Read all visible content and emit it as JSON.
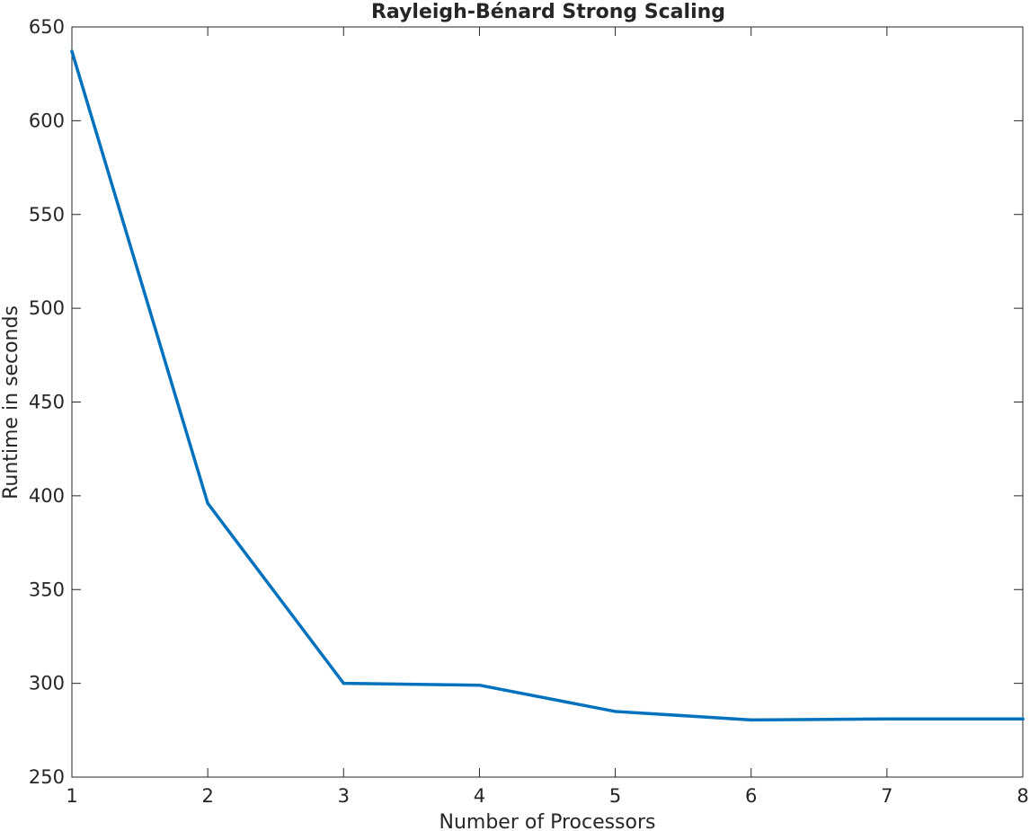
{
  "chart_data": {
    "type": "line",
    "title": "Rayleigh-Bénard Strong Scaling",
    "xlabel": "Number of Processors",
    "ylabel": "Runtime in seconds",
    "xlim": [
      1,
      8
    ],
    "ylim": [
      250,
      650
    ],
    "xticks": [
      1,
      2,
      3,
      4,
      5,
      6,
      7,
      8
    ],
    "yticks": [
      250,
      300,
      350,
      400,
      450,
      500,
      550,
      600,
      650
    ],
    "grid": false,
    "legend": "none",
    "series": [
      {
        "color": "#0072BD",
        "x": [
          1,
          2,
          3,
          4,
          5,
          6,
          7,
          8
        ],
        "y": [
          637,
          396,
          300,
          299,
          285,
          280.5,
          281,
          281
        ]
      }
    ]
  }
}
